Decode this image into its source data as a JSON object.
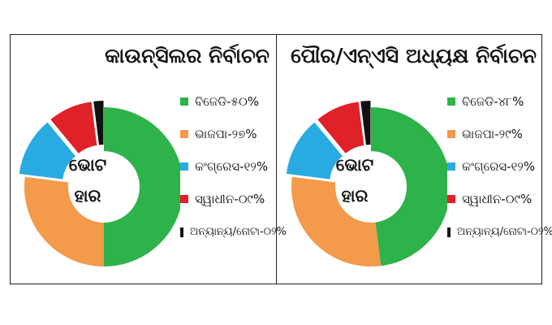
{
  "colors": {
    "bjd": "#2eb24a",
    "bjp": "#f39a4b",
    "congress": "#29abe2",
    "independent": "#e02128",
    "others": "#111111"
  },
  "chart_data": [
    {
      "type": "pie",
      "title": "କାଉନ୍ସିଲର ନିର୍ବାଚନ",
      "center_label_1": "ଭୋଟ",
      "center_label_2": "ହାର",
      "categories": [
        "ବିଜେଡି",
        "ଭାଜପା",
        "କଂଗ୍ରେସ",
        "ସ୍ୱାଧୀନ",
        "ଅନ୍ୟାନ୍ୟ/ନୋଟା"
      ],
      "values": [
        50,
        27,
        12,
        9,
        2
      ],
      "labels": [
        "ବିଜେଡି-୫୦%",
        "ଭାଜପା-୨୭%",
        "କଂଗ୍ରେସ-୧୨%",
        "ସ୍ୱାଧୀନ-୦୯%",
        "ଅନ୍ୟାନ୍ୟ/ନୋଟା-୦୨%"
      ]
    },
    {
      "type": "pie",
      "title": "ପୌର/ଏନ୍ଏସି ଅଧ୍ୟକ୍ଷ ନିର୍ବାଚନ",
      "center_label_1": "ଭୋଟ",
      "center_label_2": "ହାର",
      "categories": [
        "ବିଜେଡି",
        "ଭାଜପା",
        "କଂଗ୍ରେସ",
        "ସ୍ୱାଧୀନ",
        "ଅନ୍ୟାନ୍ୟ/ନୋଟା"
      ],
      "values": [
        48,
        29,
        12,
        9,
        2
      ],
      "labels": [
        "ବିଜେଡି-୪୮%",
        "ଭାଜପା-୨୯%",
        "କଂଗ୍ରେସ-୧୨%",
        "ସ୍ୱାଧୀନ-୦୯%",
        "ଅନ୍ୟାନ୍ୟ/ନୋଟା-୦୨%"
      ]
    }
  ]
}
